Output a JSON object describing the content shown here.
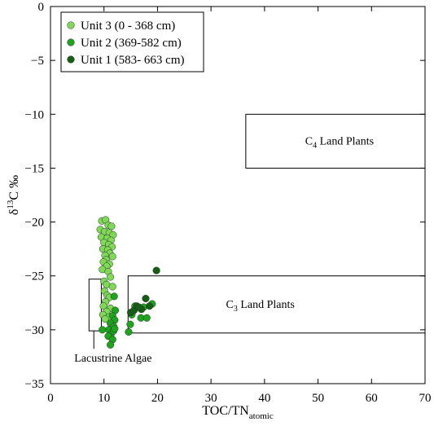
{
  "chart_data": {
    "type": "scatter",
    "xlim": [
      0,
      70
    ],
    "ylim": [
      -35,
      0
    ],
    "x_ticks": [
      0,
      10,
      20,
      30,
      40,
      50,
      60,
      70
    ],
    "y_ticks": [
      0,
      -5,
      -10,
      -15,
      -20,
      -25,
      -30,
      -35
    ],
    "xlabel_main": "TOC/TN",
    "xlabel_sub": "atomic",
    "ylabel_delta": "δ",
    "ylabel_sup": "13",
    "ylabel_rest": "C ‰",
    "legend_position": "top-left",
    "grid": false,
    "series": [
      {
        "name": "Unit 3 (0 - 368 cm)",
        "color": "#7ed957",
        "points": [
          [
            9.6,
            -19.9
          ],
          [
            10.3,
            -19.8
          ],
          [
            10.8,
            -20.3
          ],
          [
            11.4,
            -20.4
          ],
          [
            9.3,
            -20.7
          ],
          [
            10.1,
            -20.9
          ],
          [
            11.0,
            -21.0
          ],
          [
            11.7,
            -21.2
          ],
          [
            9.5,
            -21.4
          ],
          [
            10.6,
            -21.5
          ],
          [
            11.3,
            -21.7
          ],
          [
            10.0,
            -21.9
          ],
          [
            10.9,
            -22.1
          ],
          [
            11.5,
            -22.3
          ],
          [
            9.8,
            -22.5
          ],
          [
            10.7,
            -22.6
          ],
          [
            11.1,
            -22.9
          ],
          [
            10.2,
            -23.1
          ],
          [
            11.6,
            -23.2
          ],
          [
            10.4,
            -23.5
          ],
          [
            9.9,
            -23.7
          ],
          [
            11.0,
            -23.9
          ],
          [
            10.5,
            -24.1
          ],
          [
            9.7,
            -24.4
          ],
          [
            10.8,
            -24.6
          ],
          [
            11.2,
            -25.1
          ],
          [
            10.0,
            -25.5
          ],
          [
            10.5,
            -25.8
          ],
          [
            11.6,
            -26.0
          ],
          [
            10.1,
            -26.4
          ],
          [
            10.6,
            -26.8
          ],
          [
            11.0,
            -27.0
          ],
          [
            10.3,
            -27.4
          ],
          [
            9.9,
            -27.8
          ],
          [
            11.2,
            -28.0
          ],
          [
            10.5,
            -28.3
          ],
          [
            9.8,
            -28.6
          ],
          [
            11.0,
            -28.8
          ],
          [
            10.2,
            -29.0
          ]
        ]
      },
      {
        "name": "Unit 2 (369-582 cm)",
        "color": "#1ea51e",
        "points": [
          [
            11.9,
            -26.9
          ],
          [
            12.1,
            -28.2
          ],
          [
            11.6,
            -28.7
          ],
          [
            12.0,
            -29.1
          ],
          [
            11.2,
            -29.4
          ],
          [
            11.8,
            -29.7
          ],
          [
            10.9,
            -30.0
          ],
          [
            11.3,
            -30.4
          ],
          [
            10.8,
            -30.6
          ],
          [
            11.6,
            -30.9
          ],
          [
            11.2,
            -31.4
          ],
          [
            11.8,
            -30.1
          ],
          [
            14.9,
            -29.5
          ],
          [
            14.6,
            -30.2
          ],
          [
            15.2,
            -28.6
          ],
          [
            15.8,
            -27.8
          ],
          [
            16.9,
            -28.9
          ],
          [
            17.4,
            -27.9
          ],
          [
            18.0,
            -28.9
          ],
          [
            19.0,
            -27.6
          ],
          [
            9.7,
            -30.0
          ],
          [
            12.0,
            -29.9
          ]
        ]
      },
      {
        "name": "Unit 1 (583- 663 cm)",
        "color": "#145f14",
        "points": [
          [
            15.0,
            -28.4
          ],
          [
            15.6,
            -28.2
          ],
          [
            16.1,
            -27.8
          ],
          [
            17.0,
            -28.1
          ],
          [
            17.8,
            -27.1
          ],
          [
            18.5,
            -27.8
          ],
          [
            19.8,
            -24.5
          ],
          [
            16.5,
            -27.9
          ]
        ]
      }
    ],
    "regions": [
      {
        "label_main": "C",
        "label_sub": "4",
        "label_rest": " Land Plants",
        "x": [
          36.5,
          70
        ],
        "y": [
          -15,
          -10
        ]
      },
      {
        "label_main": "C",
        "label_sub": "3",
        "label_rest": " Land Plants",
        "x": [
          14.5,
          70
        ],
        "y": [
          -30.3,
          -25
        ]
      },
      {
        "label": "Lacustrine Algae",
        "x": [
          7.2,
          9.5
        ],
        "y": [
          -30.1,
          -25.3
        ]
      }
    ]
  }
}
